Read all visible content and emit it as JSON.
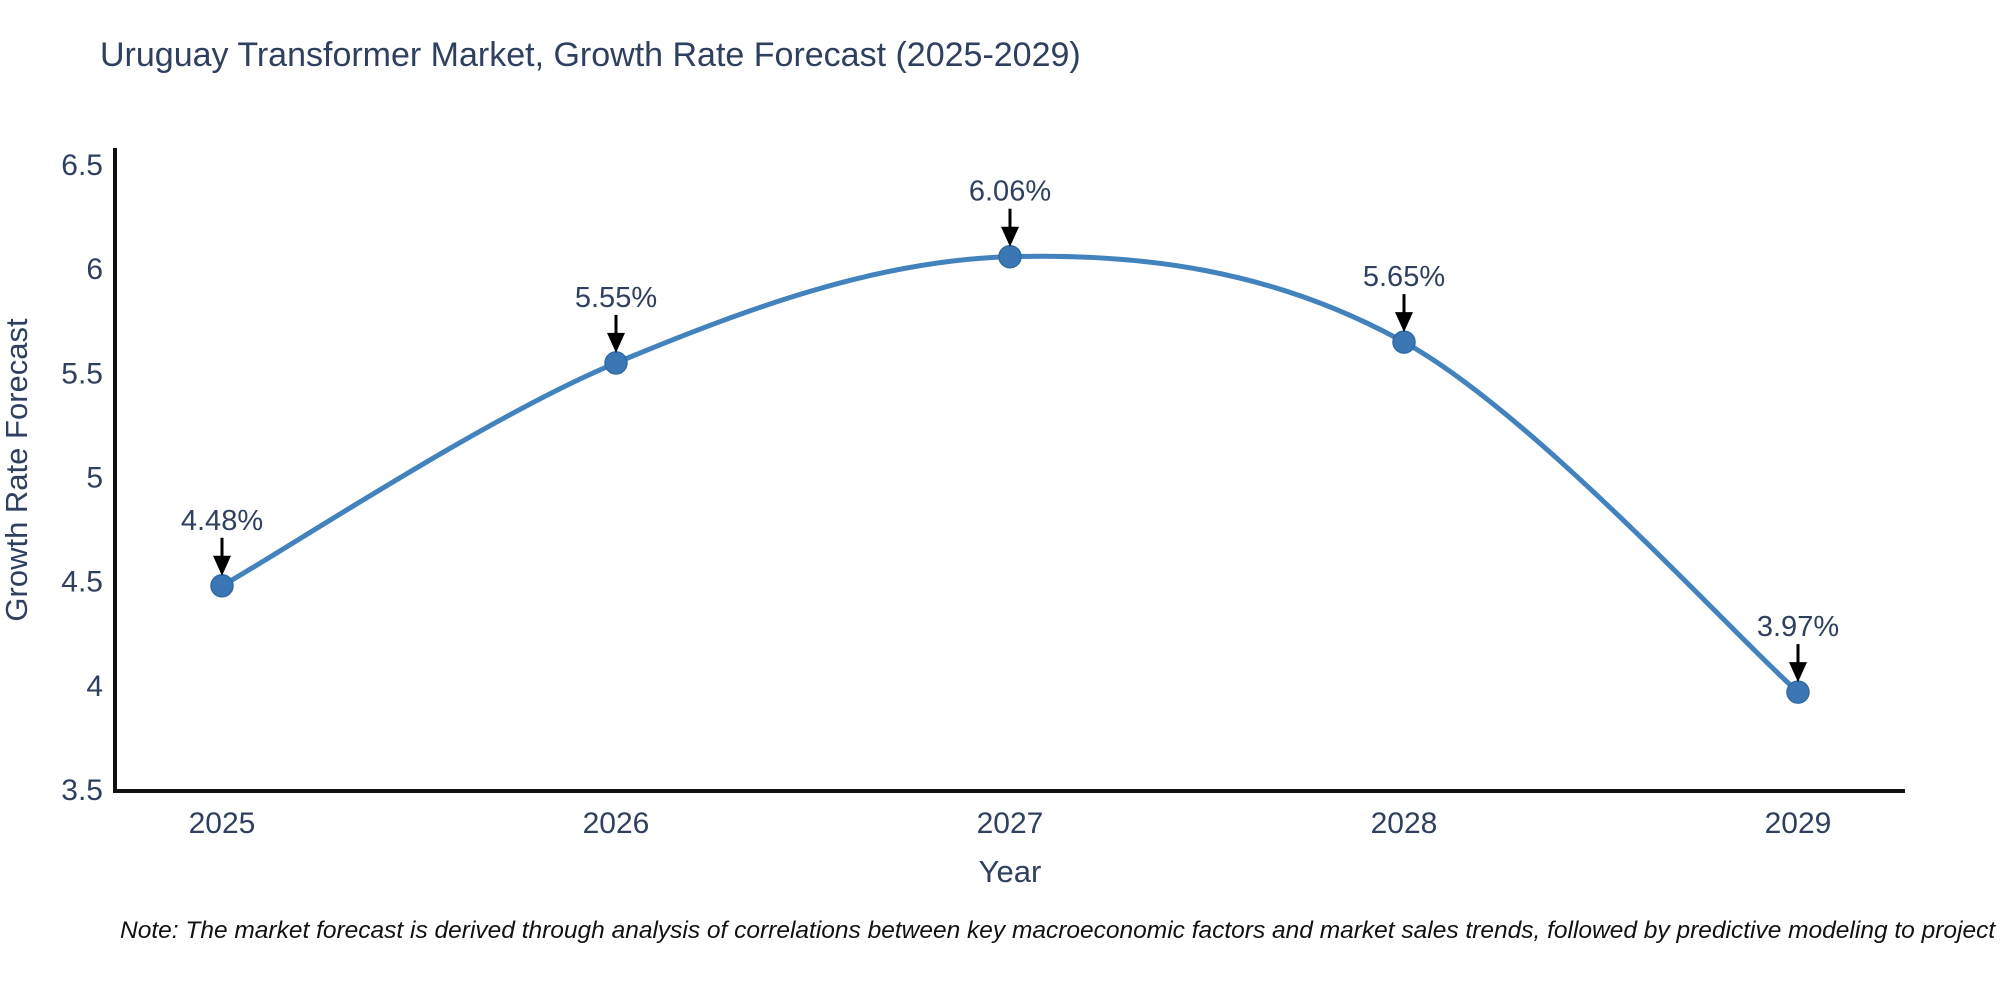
{
  "note": "Note: The market forecast is derived through analysis of correlations between key macroeconomic factors and market sales trends, followed by predictive modeling to project future sales",
  "chart_data": {
    "type": "line",
    "title": "Uruguay Transformer Market, Growth Rate Forecast (2025-2029)",
    "xlabel": "Year",
    "ylabel": "Growth Rate Forecast",
    "categories": [
      "2025",
      "2026",
      "2027",
      "2028",
      "2029"
    ],
    "values": [
      4.48,
      5.55,
      6.06,
      5.65,
      3.97
    ],
    "point_labels": [
      "4.48%",
      "5.55%",
      "6.06%",
      "5.65%",
      "3.97%"
    ],
    "yticks": [
      "6.5",
      "6",
      "5.5",
      "5",
      "4.5",
      "4",
      "3.5"
    ],
    "ytick_values": [
      6.5,
      6.0,
      5.5,
      5.0,
      4.5,
      4.0,
      3.5
    ],
    "ylim": [
      3.5,
      6.5
    ],
    "line_shape": "spline",
    "grid": false,
    "legend": "none",
    "annotations_have_arrows": true,
    "colors": {
      "line": "#4282bd",
      "marker": "#3a77b4",
      "marker_edge": "#2f6aa3",
      "axis": "#111111",
      "text": "#2e3f5f",
      "arrow": "#000000",
      "note": "#111111",
      "background": "#ffffff"
    }
  }
}
